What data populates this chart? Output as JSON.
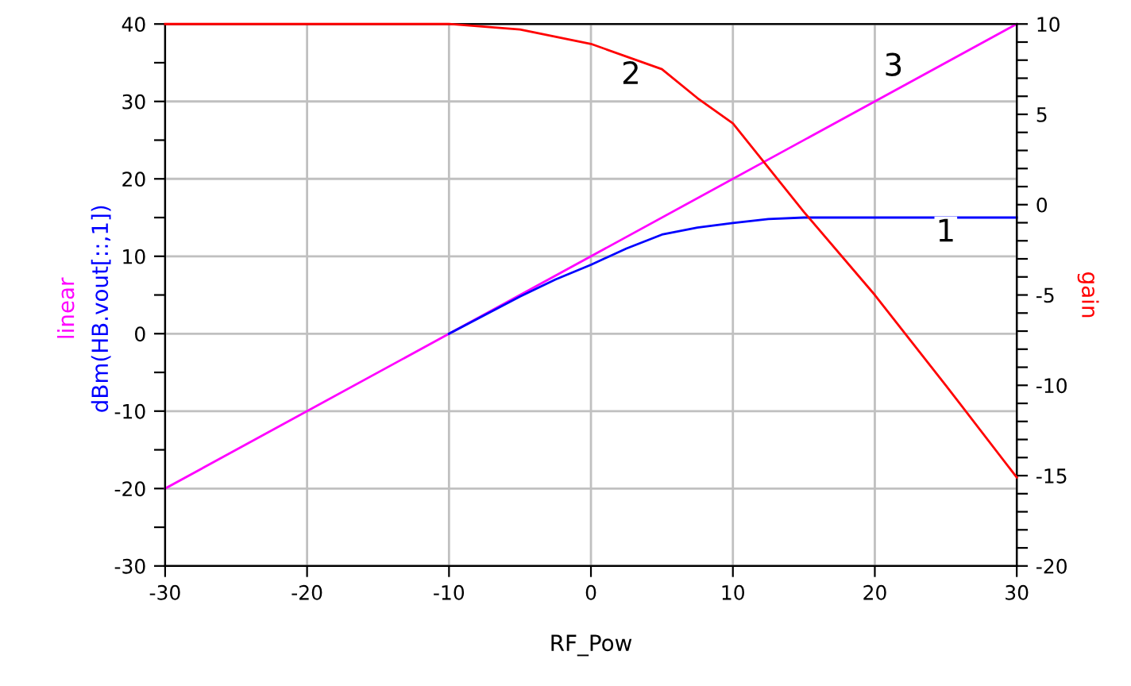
{
  "chart_data": {
    "type": "line",
    "xlabel": "RF_Pow",
    "ylabel": [
      "linear",
      "dBm(HB.vout[::,1])"
    ],
    "y2label": "gain",
    "xlim": [
      -30,
      30
    ],
    "xticks": [
      -30,
      -20,
      -10,
      0,
      10,
      20,
      30
    ],
    "ylim": [
      -30,
      40
    ],
    "yticks": [
      -30,
      {
        "value": -25,
        "label": null
      },
      -20,
      {
        "value": -15,
        "label": null
      },
      -10,
      {
        "value": -5,
        "label": null
      },
      0,
      {
        "value": 5,
        "label": null
      },
      10,
      {
        "value": 15,
        "label": null
      },
      20,
      {
        "value": 25,
        "label": null
      },
      30,
      {
        "value": 35,
        "label": null
      },
      40
    ],
    "y2lim": [
      -20,
      10
    ],
    "y2ticks": [
      -20,
      {
        "value": -19,
        "label": null
      },
      {
        "value": -18,
        "label": null
      },
      {
        "value": -17,
        "label": null
      },
      {
        "value": -16,
        "label": null
      },
      -15,
      {
        "value": -14,
        "label": null
      },
      {
        "value": -13,
        "label": null
      },
      {
        "value": -12,
        "label": null
      },
      {
        "value": -11,
        "label": null
      },
      -10,
      {
        "value": -9,
        "label": null
      },
      {
        "value": -8,
        "label": null
      },
      {
        "value": -7,
        "label": null
      },
      {
        "value": -6,
        "label": null
      },
      -5,
      {
        "value": -4,
        "label": null
      },
      {
        "value": -3,
        "label": null
      },
      {
        "value": -2,
        "label": null
      },
      {
        "value": -1,
        "label": null
      },
      0,
      {
        "value": 1,
        "label": null
      },
      {
        "value": 2,
        "label": null
      },
      {
        "value": 3,
        "label": null
      },
      {
        "value": 4,
        "label": null
      },
      5,
      {
        "value": 6,
        "label": null
      },
      {
        "value": 7,
        "label": null
      },
      {
        "value": 8,
        "label": null
      },
      {
        "value": 9,
        "label": null
      },
      10
    ],
    "grid": true,
    "series": [
      {
        "color": "#ff00ff",
        "x": [
          -30,
          30
        ],
        "values": [
          -20,
          40
        ]
      },
      {
        "color": "#0000ff",
        "x": [
          -10,
          -5,
          -2.5,
          0,
          2.5,
          5,
          7.5,
          10,
          12.5,
          15,
          30
        ],
        "values": [
          0,
          4.8,
          7.0,
          8.9,
          11.0,
          12.8,
          13.7,
          14.3,
          14.8,
          15,
          15
        ]
      },
      {
        "color": "#ff0000",
        "axis": "y2",
        "x": [
          -30,
          -10,
          -5,
          0,
          5,
          7.5,
          10,
          15,
          20,
          25,
          30
        ],
        "values": [
          10,
          10,
          9.7,
          8.9,
          7.5,
          5.9,
          4.5,
          -0.4,
          -5.0,
          -10.0,
          -15.1
        ]
      }
    ],
    "annotations": [
      {
        "text": "1",
        "x": 25,
        "y": 15
      },
      "2",
      {
        "text": "3",
        "x": 21,
        "y": 31
      }
    ]
  }
}
